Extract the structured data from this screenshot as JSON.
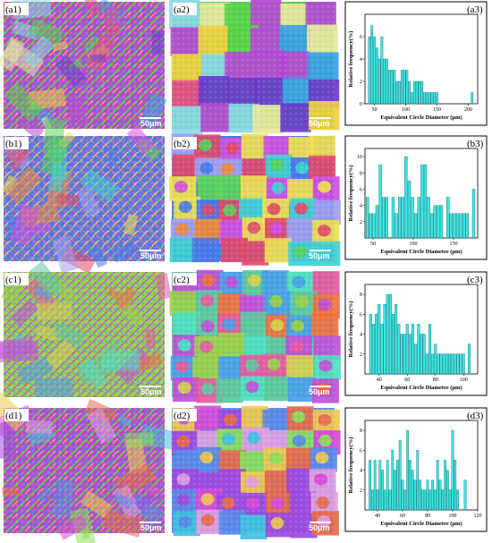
{
  "figure": {
    "panels": [
      {
        "row_label": "(a1)",
        "micro_label": "(a2)",
        "chart_label": "(a3)",
        "scale_bar": "50μm",
        "scale_bar_2": "50μm"
      },
      {
        "row_label": "(b1)",
        "micro_label": "(b2)",
        "chart_label": "(b3)",
        "scale_bar": "50μm",
        "scale_bar_2": "50μm"
      },
      {
        "row_label": "(c1)",
        "micro_label": "(c2)",
        "chart_label": "(c3)",
        "scale_bar": "50μm",
        "scale_bar_2": "50μm"
      },
      {
        "row_label": "(d1)",
        "micro_label": "(d2)",
        "chart_label": "(d3)",
        "scale_bar": "50μm",
        "scale_bar_2": "50μm"
      }
    ],
    "colors": {
      "bar_fill": "#3ee6e6",
      "bar_stroke": "#0a6a6a",
      "frame": "#000000"
    }
  },
  "chart_data": [
    {
      "type": "bar",
      "label": "(a3)",
      "xlabel": "Equivalent Circle Diameter (μm)",
      "ylabel": "Relative frequency(%)",
      "xlim": [
        35,
        215
      ],
      "ylim": [
        0,
        8
      ],
      "xticks": [
        50,
        100,
        150,
        200
      ],
      "yticks": [
        0,
        2,
        4,
        6
      ],
      "x": [
        42,
        46,
        50,
        54,
        58,
        62,
        66,
        70,
        74,
        78,
        82,
        86,
        90,
        94,
        98,
        102,
        106,
        110,
        114,
        118,
        122,
        126,
        130,
        134,
        138,
        142,
        146,
        150,
        206
      ],
      "values": [
        6,
        7,
        6,
        5,
        4,
        6,
        4,
        4,
        3,
        3,
        3,
        2,
        2,
        3,
        3,
        3,
        2,
        1,
        2,
        2,
        2,
        2,
        1,
        1,
        1,
        1,
        1,
        1,
        1
      ]
    },
    {
      "type": "bar",
      "label": "(b3)",
      "xlabel": "Equivalent Circle Diameter (μm)",
      "ylabel": "Relative frequency(%)",
      "xlim": [
        40,
        180
      ],
      "ylim": [
        0,
        11
      ],
      "xticks": [
        50,
        100,
        150
      ],
      "yticks": [
        2,
        4,
        6,
        8,
        10
      ],
      "x": [
        43,
        47,
        51,
        55,
        59,
        63,
        67,
        71,
        75,
        79,
        83,
        87,
        91,
        95,
        99,
        103,
        107,
        111,
        115,
        119,
        123,
        127,
        131,
        135,
        139,
        143,
        147,
        151,
        155,
        159,
        163,
        167,
        171,
        175
      ],
      "values": [
        5,
        3,
        3,
        4,
        9,
        5,
        5,
        0,
        5,
        3,
        5,
        5,
        10,
        7,
        5,
        3,
        5,
        9,
        9,
        5,
        3,
        4,
        4,
        4,
        0,
        5,
        3,
        3,
        3,
        3,
        3,
        3,
        0,
        6
      ]
    },
    {
      "type": "bar",
      "label": "(c3)",
      "xlabel": "Equivalent Circle Diameter (μm)",
      "ylabel": "Relative frequency(%)",
      "xlim": [
        30,
        110
      ],
      "ylim": [
        0,
        9
      ],
      "xticks": [
        40,
        60,
        80,
        100
      ],
      "yticks": [
        2,
        4,
        6,
        8
      ],
      "x": [
        34,
        36,
        38,
        40,
        42,
        44,
        46,
        48,
        50,
        52,
        54,
        56,
        58,
        60,
        62,
        64,
        66,
        68,
        70,
        72,
        74,
        76,
        78,
        80,
        82,
        84,
        86,
        88,
        90,
        92,
        94,
        96,
        98,
        100,
        104
      ],
      "values": [
        6,
        5,
        6,
        7,
        5,
        7,
        8,
        8,
        6,
        7,
        5,
        4,
        4,
        5,
        4,
        5,
        3,
        5,
        4,
        4,
        2,
        5,
        2,
        3,
        2,
        2,
        2,
        2,
        2,
        2,
        2,
        2,
        2,
        2,
        3
      ]
    },
    {
      "type": "bar",
      "label": "(d3)",
      "xlabel": "Equivalent Circle Diameter (μm)",
      "ylabel": "Relative frequency(%)",
      "xlim": [
        30,
        120
      ],
      "ylim": [
        0,
        9
      ],
      "xticks": [
        40,
        60,
        80,
        100,
        120
      ],
      "yticks": [
        2,
        4,
        6,
        8
      ],
      "x": [
        34,
        36,
        38,
        40,
        42,
        44,
        46,
        48,
        50,
        52,
        54,
        56,
        58,
        60,
        62,
        64,
        66,
        68,
        70,
        72,
        74,
        76,
        78,
        80,
        82,
        84,
        86,
        88,
        90,
        92,
        94,
        96,
        98,
        100,
        102,
        104,
        110
      ],
      "values": [
        5,
        2,
        5,
        2,
        5,
        4,
        2,
        5,
        2,
        6,
        4,
        5,
        7,
        3,
        2,
        8,
        5,
        4,
        3,
        6,
        3,
        2,
        2,
        3,
        2,
        3,
        2,
        5,
        3,
        2,
        5,
        4,
        2,
        8,
        5,
        2,
        3
      ]
    }
  ]
}
